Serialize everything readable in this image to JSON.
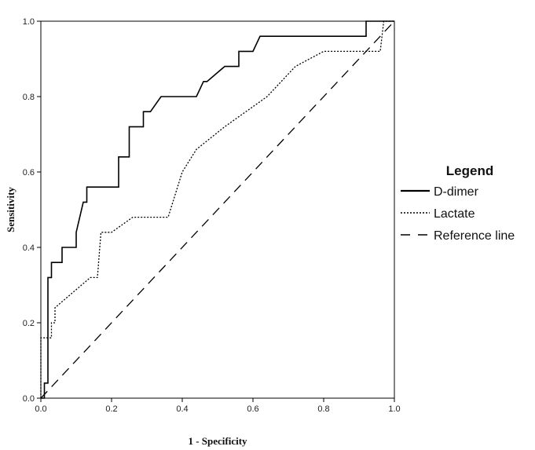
{
  "chart_data": {
    "type": "line",
    "xlabel": "1 - Specificity",
    "ylabel": "Sensitivity",
    "xlim": [
      0,
      1
    ],
    "ylim": [
      0,
      1
    ],
    "x_ticks": [
      "0.0",
      "0.2",
      "0.4",
      "0.6",
      "0.8",
      "1.0"
    ],
    "y_ticks": [
      "0.0",
      "0.2",
      "0.4",
      "0.6",
      "0.8",
      "1.0"
    ],
    "grid": false,
    "legend": {
      "title": "Legend",
      "placement": "right",
      "entries": [
        "D-dimer",
        "Lactate",
        "Reference line"
      ]
    },
    "series": [
      {
        "name": "D-dimer",
        "style": "solid",
        "color": "#000000",
        "points": [
          [
            0.0,
            0.0
          ],
          [
            0.01,
            0.0
          ],
          [
            0.01,
            0.04
          ],
          [
            0.02,
            0.04
          ],
          [
            0.02,
            0.32
          ],
          [
            0.03,
            0.32
          ],
          [
            0.03,
            0.36
          ],
          [
            0.06,
            0.36
          ],
          [
            0.06,
            0.4
          ],
          [
            0.1,
            0.4
          ],
          [
            0.1,
            0.44
          ],
          [
            0.12,
            0.52
          ],
          [
            0.13,
            0.52
          ],
          [
            0.13,
            0.56
          ],
          [
            0.22,
            0.56
          ],
          [
            0.22,
            0.64
          ],
          [
            0.25,
            0.64
          ],
          [
            0.25,
            0.72
          ],
          [
            0.29,
            0.72
          ],
          [
            0.29,
            0.76
          ],
          [
            0.31,
            0.76
          ],
          [
            0.34,
            0.8
          ],
          [
            0.44,
            0.8
          ],
          [
            0.46,
            0.84
          ],
          [
            0.47,
            0.84
          ],
          [
            0.52,
            0.88
          ],
          [
            0.56,
            0.88
          ],
          [
            0.56,
            0.92
          ],
          [
            0.6,
            0.92
          ],
          [
            0.62,
            0.96
          ],
          [
            0.92,
            0.96
          ],
          [
            0.92,
            1.0
          ],
          [
            1.0,
            1.0
          ]
        ]
      },
      {
        "name": "Lactate",
        "style": "dotted",
        "color": "#000000",
        "points": [
          [
            0.0,
            0.0
          ],
          [
            0.0,
            0.16
          ],
          [
            0.03,
            0.16
          ],
          [
            0.03,
            0.2
          ],
          [
            0.04,
            0.2
          ],
          [
            0.04,
            0.24
          ],
          [
            0.14,
            0.32
          ],
          [
            0.16,
            0.32
          ],
          [
            0.17,
            0.44
          ],
          [
            0.2,
            0.44
          ],
          [
            0.26,
            0.48
          ],
          [
            0.36,
            0.48
          ],
          [
            0.4,
            0.6
          ],
          [
            0.44,
            0.66
          ],
          [
            0.52,
            0.72
          ],
          [
            0.64,
            0.8
          ],
          [
            0.72,
            0.88
          ],
          [
            0.8,
            0.92
          ],
          [
            0.96,
            0.92
          ],
          [
            0.97,
            1.0
          ],
          [
            1.0,
            1.0
          ]
        ]
      },
      {
        "name": "Reference line",
        "style": "dashed",
        "color": "#000000",
        "points": [
          [
            0.0,
            0.0
          ],
          [
            1.0,
            1.0
          ]
        ]
      }
    ]
  }
}
